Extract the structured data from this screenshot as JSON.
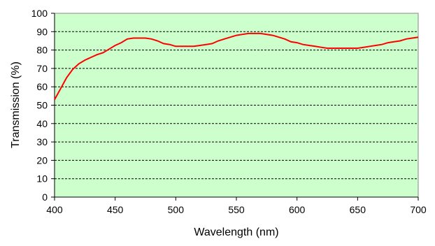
{
  "chart_data": {
    "type": "line",
    "xlabel": "Wavelength (nm)",
    "ylabel": "Transmission (%)",
    "xlim": [
      400,
      700
    ],
    "ylim": [
      0,
      100
    ],
    "x_ticks": [
      "400",
      "450",
      "500",
      "550",
      "600",
      "650",
      "700"
    ],
    "y_ticks": [
      "0",
      "10",
      "20",
      "30",
      "40",
      "50",
      "60",
      "70",
      "80",
      "90",
      "100"
    ],
    "grid": "horizontal dashed",
    "legend": "none",
    "colors": {
      "plot_background": "#ccffcc",
      "line": "#ff0000",
      "grid": "#000000"
    },
    "series": [
      {
        "x": [
          400,
          405,
          410,
          415,
          420,
          425,
          430,
          435,
          440,
          445,
          450,
          455,
          460,
          465,
          470,
          475,
          480,
          485,
          490,
          495,
          500,
          505,
          510,
          515,
          520,
          525,
          530,
          535,
          540,
          545,
          550,
          555,
          560,
          565,
          570,
          575,
          580,
          585,
          590,
          595,
          600,
          605,
          610,
          615,
          620,
          625,
          630,
          635,
          640,
          645,
          650,
          655,
          660,
          665,
          670,
          675,
          680,
          685,
          690,
          695,
          700
        ],
        "values": [
          53,
          59,
          65,
          69.5,
          72.5,
          74.5,
          76,
          77.5,
          78.5,
          80.5,
          82.5,
          84,
          86,
          86.5,
          86.5,
          86.5,
          86,
          85,
          83.5,
          83,
          82,
          82,
          82,
          82,
          82.5,
          83,
          83.5,
          85,
          86,
          87,
          88,
          88.5,
          89,
          89,
          89,
          88.5,
          88,
          87,
          86,
          84.5,
          84,
          83,
          82.5,
          82,
          81.5,
          81,
          81,
          81,
          81,
          81,
          81,
          81.5,
          82,
          82.5,
          83,
          84,
          84.5,
          85,
          86,
          86.5,
          87
        ]
      }
    ]
  }
}
